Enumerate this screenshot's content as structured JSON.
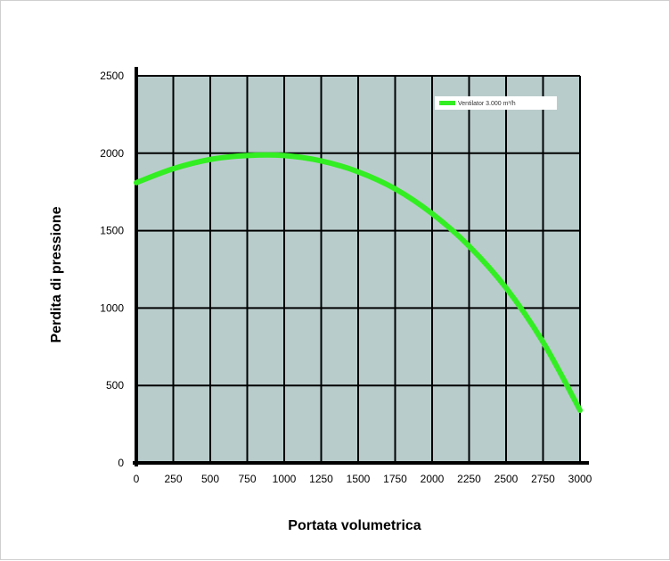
{
  "chart_data": {
    "type": "line",
    "title": "",
    "xlabel": "Portata volumetrica",
    "ylabel": "Perdita di pressione",
    "xlim": [
      0,
      3000
    ],
    "ylim": [
      0,
      2500
    ],
    "x_ticks": [
      0,
      250,
      500,
      750,
      1000,
      1250,
      1500,
      1750,
      2000,
      2250,
      2500,
      2750,
      3000
    ],
    "y_ticks": [
      0,
      500,
      1000,
      1500,
      2000,
      2500
    ],
    "grid": true,
    "legend_position": "top-right",
    "colors": {
      "plot_background": "#b9cccc",
      "grid": "#000000",
      "series": "#33ee22"
    },
    "series": [
      {
        "name": "Ventilator 3.000 m³/h",
        "x": [
          0,
          250,
          500,
          750,
          1000,
          1250,
          1500,
          1750,
          2000,
          2250,
          2500,
          2750,
          3000
        ],
        "y": [
          1810,
          1900,
          1960,
          1985,
          1985,
          1950,
          1880,
          1770,
          1610,
          1400,
          1130,
          780,
          340
        ]
      }
    ]
  }
}
